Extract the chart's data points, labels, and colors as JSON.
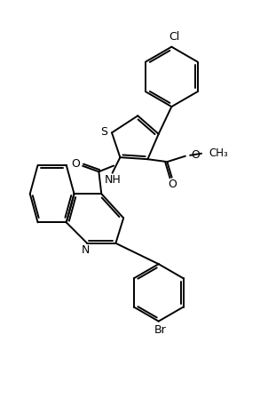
{
  "bg_color": "#ffffff",
  "line_color": "#000000",
  "lw": 1.4,
  "figsize": [
    2.93,
    4.48
  ],
  "dpi": 100,
  "xlim": [
    0,
    10
  ],
  "ylim": [
    0,
    15.3
  ]
}
